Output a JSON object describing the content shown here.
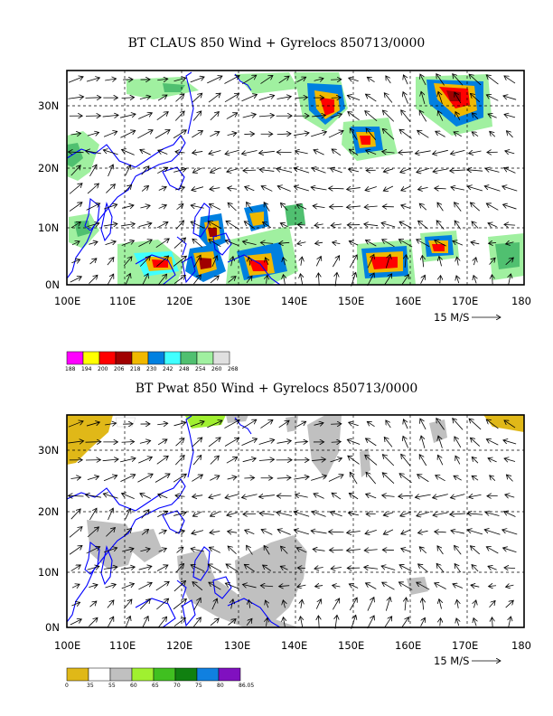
{
  "panel1": {
    "title": "BT CLAUS 850 Wind + Gyrelocs 850713/0000",
    "lat_labels": [
      "30N",
      "20N",
      "10N",
      "0N"
    ],
    "lon_labels": [
      "100E",
      "110E",
      "120E",
      "130E",
      "140E",
      "150E",
      "160E",
      "170E",
      "180"
    ],
    "scale_label": "15 M/S",
    "colorbar": {
      "colors": [
        "#ff00ff",
        "#ffff00",
        "#ff0000",
        "#a00000",
        "#f0b800",
        "#0080e0",
        "#40ffff",
        "#50c070",
        "#a0f0a0",
        "#e0e0e0"
      ],
      "labels": [
        "188",
        "194",
        "200",
        "206",
        "218",
        "230",
        "242",
        "248",
        "254",
        "260",
        "268"
      ]
    }
  },
  "panel2": {
    "title": "BT Pwat 850 Wind + Gyrelocs 850713/0000",
    "lat_labels": [
      "30N",
      "20N",
      "10N",
      "0N"
    ],
    "lon_labels": [
      "100E",
      "110E",
      "120E",
      "130E",
      "140E",
      "150E",
      "160E",
      "170E",
      "180"
    ],
    "scale_label": "15 M/S",
    "colorbar": {
      "colors": [
        "#e0b818",
        "#ffffff",
        "#c0c0c0",
        "#a0f030",
        "#40c020",
        "#108010",
        "#1080e0",
        "#8010c0"
      ],
      "labels": [
        "0",
        "35",
        "55",
        "60",
        "65",
        "70",
        "75",
        "80",
        "86.05"
      ]
    }
  },
  "colors": {
    "coast": "#0000ff",
    "frame": "#000000"
  }
}
